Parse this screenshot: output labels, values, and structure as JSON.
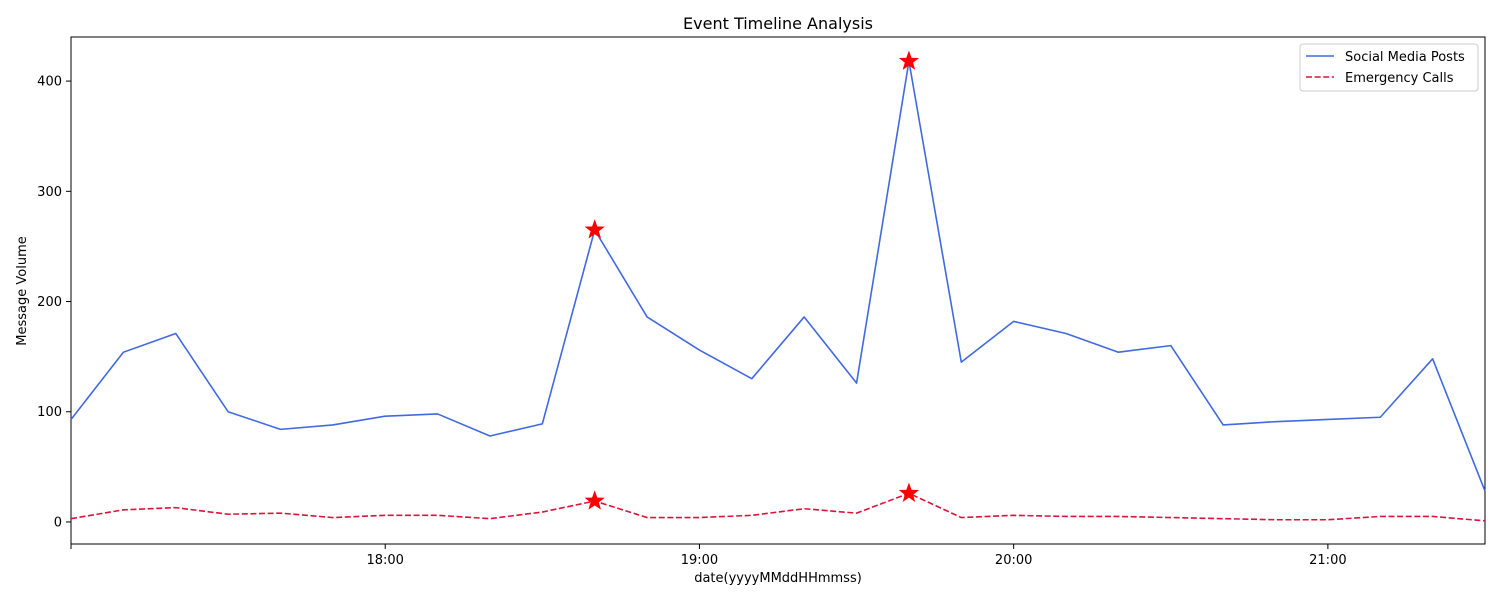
{
  "chart_data": {
    "type": "line",
    "title": "Event Timeline Analysis",
    "xlabel": "date(yyyyMMddHHmmss)",
    "ylabel": "Message Volume",
    "x": [
      "17:00",
      "17:10",
      "17:20",
      "17:30",
      "17:40",
      "17:50",
      "18:00",
      "18:10",
      "18:20",
      "18:30",
      "18:40",
      "18:50",
      "19:00",
      "19:10",
      "19:20",
      "19:30",
      "19:40",
      "19:50",
      "20:00",
      "20:10",
      "20:20",
      "20:30",
      "20:40",
      "20:50",
      "21:00",
      "21:10",
      "21:20",
      "21:30"
    ],
    "xlim": [
      "17:00",
      "21:30"
    ],
    "ylim": [
      -20,
      440
    ],
    "x_ticks": [
      "18:00",
      "19:00",
      "20:00",
      "21:00"
    ],
    "y_ticks": [
      0,
      100,
      200,
      300,
      400
    ],
    "grid": false,
    "legend_position": "top-right",
    "series": [
      {
        "name": "Social Media Posts",
        "color": "#4169E1",
        "style": "solid",
        "values": [
          93,
          154,
          171,
          100,
          84,
          88,
          96,
          98,
          78,
          89,
          265,
          186,
          156,
          130,
          186,
          126,
          418,
          145,
          182,
          171,
          154,
          160,
          88,
          91,
          93,
          95,
          148,
          28
        ]
      },
      {
        "name": "Emergency Calls",
        "color": "#DC143C",
        "style": "dashed",
        "values": [
          3,
          11,
          13,
          7,
          8,
          4,
          6,
          6,
          3,
          9,
          19,
          4,
          4,
          6,
          12,
          8,
          26,
          4,
          6,
          5,
          5,
          4,
          3,
          2,
          2,
          5,
          5,
          1
        ]
      }
    ],
    "markers": {
      "symbol": "star",
      "color": "#FF0000",
      "points": [
        {
          "x": "18:40",
          "series": "Social Media Posts",
          "y": 265
        },
        {
          "x": "19:40",
          "series": "Social Media Posts",
          "y": 418
        },
        {
          "x": "18:40",
          "series": "Emergency Calls",
          "y": 19
        },
        {
          "x": "19:40",
          "series": "Emergency Calls",
          "y": 26
        }
      ]
    }
  }
}
